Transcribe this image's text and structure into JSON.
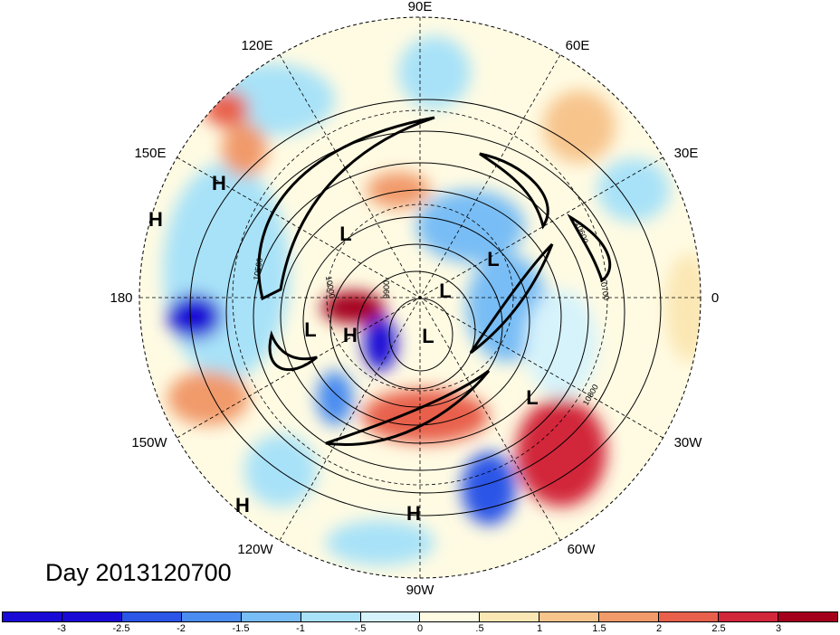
{
  "title": "Day 2013120700",
  "longitude_labels": [
    {
      "text": "90E",
      "name": "lon-90e"
    },
    {
      "text": "60E",
      "name": "lon-60e"
    },
    {
      "text": "30E",
      "name": "lon-30e"
    },
    {
      "text": "0",
      "name": "lon-0"
    },
    {
      "text": "30W",
      "name": "lon-30w"
    },
    {
      "text": "60W",
      "name": "lon-60w"
    },
    {
      "text": "90W",
      "name": "lon-90w"
    },
    {
      "text": "120W",
      "name": "lon-120w"
    },
    {
      "text": "150W",
      "name": "lon-150w"
    },
    {
      "text": "180",
      "name": "lon-180"
    },
    {
      "text": "150E",
      "name": "lon-150e"
    },
    {
      "text": "120E",
      "name": "lon-120e"
    }
  ],
  "pressure_centers": [
    "H",
    "H",
    "L",
    "L",
    "L",
    "L",
    "H",
    "L",
    "L",
    "H",
    "H"
  ],
  "contour_labels": [
    "10800",
    "10700",
    "10600",
    "10500",
    "10000",
    "9900"
  ],
  "colorbar": {
    "colors": [
      "#1a0ad6",
      "#2a55e6",
      "#4a8cf0",
      "#78bdf5",
      "#a8e2f8",
      "#d6f3fb",
      "#fffbe3",
      "#fbe7b4",
      "#f7c48c",
      "#f19a6a",
      "#e8604c",
      "#d2263b",
      "#a4001c"
    ],
    "tick_labels": [
      "-3",
      "-2.5",
      "-2",
      "-1.5",
      "-1",
      "-.5",
      "0",
      ".5",
      "1",
      "1.5",
      "2",
      "2.5",
      "3"
    ]
  }
}
